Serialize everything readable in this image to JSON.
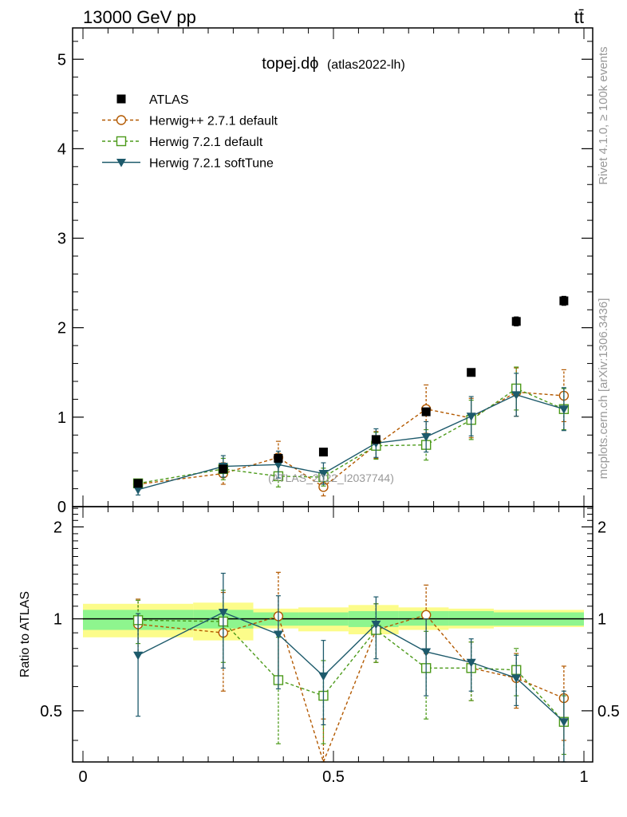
{
  "header": {
    "energy_label": "13000 GeV pp",
    "process_label": "tt̄",
    "plot_title_main": "topej.dϕ",
    "plot_title_sub": "(atlas2022-lh)",
    "watermark": "(ATLAS_2022_I2037744)",
    "side_label_top": "Rivet 4.1.0, ≥ 100k events",
    "side_label_bottom": "mcplots.cern.ch [arXiv:1306.3436]"
  },
  "colors": {
    "atlas": "#000000",
    "hpp271": "#b35900",
    "h721def": "#4c9a1a",
    "h721soft": "#1d5a6b",
    "band_inner": "#8ef58e",
    "band_outer": "#fcfc8a"
  },
  "chart_data": [
    {
      "type": "scatter",
      "panel": "main",
      "xlabel": "",
      "ylabel": "",
      "xlim": [
        -0.02,
        1.02
      ],
      "ylim": [
        0,
        5.35
      ],
      "y_ticks": [
        0,
        1,
        2,
        3,
        4,
        5
      ],
      "y_tick_labels": [
        "0",
        "1",
        "2",
        "3",
        "4",
        "5"
      ],
      "legend_position": "top-left",
      "series": [
        {
          "name": "ATLAS",
          "key": "atlas",
          "marker": "filled-square",
          "line": "none",
          "x": [
            0.11,
            0.28,
            0.39,
            0.48,
            0.585,
            0.685,
            0.775,
            0.865,
            0.96
          ],
          "y": [
            0.26,
            0.42,
            0.54,
            0.61,
            0.75,
            1.06,
            1.5,
            2.07,
            2.3
          ],
          "err": [
            0.02,
            0.03,
            0.03,
            0.03,
            0.03,
            0.04,
            0.04,
            0.05,
            0.05
          ]
        },
        {
          "name": "Herwig++ 2.7.1 default",
          "key": "hpp271",
          "marker": "open-circle",
          "line": "dashed",
          "x": [
            0.11,
            0.28,
            0.39,
            0.48,
            0.585,
            0.685,
            0.775,
            0.865,
            0.96
          ],
          "y": [
            0.25,
            0.37,
            0.55,
            0.22,
            0.69,
            1.09,
            0.99,
            1.28,
            1.24
          ],
          "err": [
            0.05,
            0.12,
            0.18,
            0.1,
            0.15,
            0.27,
            0.22,
            0.27,
            0.29
          ]
        },
        {
          "name": "Herwig 7.2.1 default",
          "key": "h721def",
          "marker": "open-square",
          "line": "dashed",
          "x": [
            0.11,
            0.28,
            0.39,
            0.48,
            0.585,
            0.685,
            0.775,
            0.865,
            0.96
          ],
          "y": [
            0.26,
            0.42,
            0.34,
            0.33,
            0.68,
            0.69,
            0.97,
            1.32,
            1.09
          ],
          "err": [
            0.04,
            0.12,
            0.12,
            0.1,
            0.15,
            0.17,
            0.22,
            0.24,
            0.23
          ]
        },
        {
          "name": "Herwig 7.2.1 softTune",
          "key": "h721soft",
          "marker": "filled-triangle-down",
          "line": "solid",
          "x": [
            0.11,
            0.28,
            0.39,
            0.48,
            0.585,
            0.685,
            0.775,
            0.865,
            0.96
          ],
          "y": [
            0.19,
            0.45,
            0.47,
            0.37,
            0.71,
            0.78,
            1.01,
            1.25,
            1.09
          ],
          "err": [
            0.06,
            0.12,
            0.15,
            0.12,
            0.16,
            0.17,
            0.22,
            0.24,
            0.24
          ]
        }
      ]
    },
    {
      "type": "line",
      "panel": "ratio",
      "xlabel": "",
      "ylabel": "Ratio to ATLAS",
      "xlim": [
        -0.02,
        1.02
      ],
      "ylim": [
        0.34,
        2.33
      ],
      "y_ticks": [
        0.5,
        1,
        2
      ],
      "y_tick_labels": [
        "0.5",
        "1",
        "2"
      ],
      "x_ticks": [
        0,
        0.5,
        1
      ],
      "x_tick_labels": [
        "0",
        "0.5",
        "1"
      ],
      "reference_line": 1,
      "bands": {
        "edges": [
          0.0,
          0.22,
          0.34,
          0.43,
          0.53,
          0.63,
          0.73,
          0.82,
          1.0
        ],
        "inner_low": [
          0.92,
          0.93,
          0.95,
          0.95,
          0.94,
          0.95,
          0.95,
          0.95
        ],
        "inner_high": [
          1.07,
          1.07,
          1.05,
          1.05,
          1.06,
          1.06,
          1.06,
          1.05
        ],
        "outer_low": [
          0.87,
          0.85,
          0.93,
          0.91,
          0.89,
          0.92,
          0.93,
          0.94
        ],
        "outer_high": [
          1.12,
          1.13,
          1.08,
          1.09,
          1.11,
          1.09,
          1.08,
          1.07
        ]
      },
      "series": [
        {
          "name": "Herwig++ 2.7.1 default",
          "key": "hpp271",
          "x": [
            0.11,
            0.28,
            0.39,
            0.48,
            0.585,
            0.685,
            0.775,
            0.865,
            0.96
          ],
          "y": [
            0.96,
            0.9,
            1.02,
            0.32,
            0.92,
            1.03,
            0.69,
            0.64,
            0.55
          ],
          "err": [
            0.2,
            0.32,
            0.4,
            0.15,
            0.2,
            0.26,
            0.15,
            0.13,
            0.15
          ]
        },
        {
          "name": "Herwig 7.2.1 default",
          "key": "h721def",
          "x": [
            0.11,
            0.28,
            0.39,
            0.48,
            0.585,
            0.685,
            0.775,
            0.865,
            0.96
          ],
          "y": [
            0.99,
            0.98,
            0.63,
            0.56,
            0.92,
            0.69,
            0.69,
            0.68,
            0.46
          ],
          "err": [
            0.16,
            0.26,
            0.24,
            0.17,
            0.2,
            0.22,
            0.15,
            0.12,
            0.1
          ]
        },
        {
          "name": "Herwig 7.2.1 softTune",
          "key": "h721soft",
          "x": [
            0.11,
            0.28,
            0.39,
            0.48,
            0.585,
            0.685,
            0.775,
            0.865,
            0.96
          ],
          "y": [
            0.76,
            1.05,
            0.89,
            0.65,
            0.96,
            0.78,
            0.72,
            0.64,
            0.46
          ],
          "err": [
            0.28,
            0.36,
            0.3,
            0.2,
            0.22,
            0.22,
            0.14,
            0.12,
            0.12
          ]
        }
      ]
    }
  ]
}
